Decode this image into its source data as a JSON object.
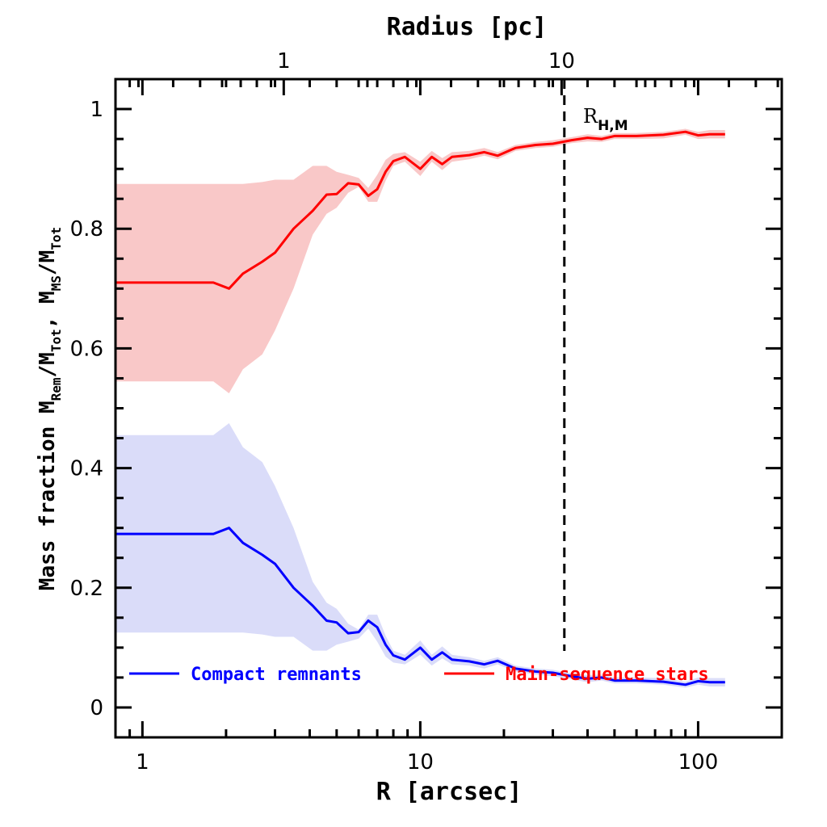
{
  "chart_data": {
    "type": "line",
    "title": "",
    "xlabel": "R [arcsec]",
    "x2label": "Radius [pc]",
    "ylabel_prefix": "Mass fraction",
    "ylabel_rem": "Rem",
    "ylabel_tot": "Tot",
    "ylabel_ms": "MS",
    "xscale": "log",
    "xlim": [
      0.8,
      200
    ],
    "ylim": [
      -0.05,
      1.05
    ],
    "xticks": [
      1,
      10,
      100
    ],
    "xticklabels": [
      "1",
      "10",
      "100"
    ],
    "yticks": [
      0,
      0.2,
      0.4,
      0.6,
      0.8,
      1
    ],
    "yticklabels": [
      "0",
      "0.2",
      "0.4",
      "0.6",
      "0.8",
      "1"
    ],
    "x2ticks": [
      1,
      10
    ],
    "x2ticklabels": [
      "1",
      "10"
    ],
    "pc_per_arcsec": 0.31,
    "vline": {
      "x": 33,
      "label": "R",
      "label_sub": "H,M"
    },
    "colors": {
      "ms": "#ff0000",
      "ms_band": "#f9c8c8",
      "rem": "#0000ff",
      "rem_band": "#dadcf9"
    },
    "series": [
      {
        "name": "Main-sequence stars",
        "x": [
          0.8,
          1.8,
          2.05,
          2.3,
          2.7,
          3.0,
          3.5,
          4.1,
          4.6,
          5.0,
          5.5,
          6.0,
          6.5,
          7.0,
          7.5,
          8.0,
          8.8,
          10.0,
          11.0,
          12.0,
          13.0,
          15.0,
          17.0,
          19.0,
          22.0,
          26.0,
          30.0,
          35.0,
          40.0,
          45.0,
          50.0,
          60.0,
          75.0,
          90.0,
          100.0,
          110.0,
          125.0
        ],
        "values": [
          0.71,
          0.71,
          0.7,
          0.725,
          0.745,
          0.76,
          0.8,
          0.83,
          0.857,
          0.858,
          0.876,
          0.874,
          0.855,
          0.866,
          0.895,
          0.913,
          0.92,
          0.9,
          0.92,
          0.908,
          0.92,
          0.923,
          0.928,
          0.922,
          0.935,
          0.94,
          0.942,
          0.948,
          0.952,
          0.95,
          0.955,
          0.955,
          0.957,
          0.962,
          0.956,
          0.958,
          0.958
        ],
        "band_upper": [
          0.875,
          0.875,
          0.875,
          0.875,
          0.878,
          0.882,
          0.882,
          0.905,
          0.905,
          0.895,
          0.89,
          0.885,
          0.868,
          0.89,
          0.915,
          0.925,
          0.928,
          0.912,
          0.93,
          0.918,
          0.928,
          0.93,
          0.935,
          0.928,
          0.94,
          0.945,
          0.948,
          0.953,
          0.958,
          0.955,
          0.96,
          0.96,
          0.962,
          0.967,
          0.962,
          0.965,
          0.965
        ],
        "band_lower": [
          0.545,
          0.545,
          0.525,
          0.565,
          0.59,
          0.63,
          0.7,
          0.79,
          0.825,
          0.835,
          0.86,
          0.87,
          0.845,
          0.845,
          0.88,
          0.905,
          0.912,
          0.888,
          0.912,
          0.898,
          0.912,
          0.916,
          0.922,
          0.916,
          0.93,
          0.935,
          0.937,
          0.943,
          0.946,
          0.945,
          0.95,
          0.95,
          0.951,
          0.957,
          0.95,
          0.951,
          0.951
        ]
      },
      {
        "name": "Compact remnants",
        "x": [
          0.8,
          1.8,
          2.05,
          2.3,
          2.7,
          3.0,
          3.5,
          4.1,
          4.6,
          5.0,
          5.5,
          6.0,
          6.5,
          7.0,
          7.5,
          8.0,
          8.8,
          10.0,
          11.0,
          12.0,
          13.0,
          15.0,
          17.0,
          19.0,
          22.0,
          26.0,
          30.0,
          35.0,
          40.0,
          45.0,
          50.0,
          60.0,
          75.0,
          90.0,
          100.0,
          110.0,
          125.0
        ],
        "values": [
          0.29,
          0.29,
          0.3,
          0.275,
          0.255,
          0.24,
          0.2,
          0.17,
          0.145,
          0.142,
          0.124,
          0.126,
          0.145,
          0.134,
          0.105,
          0.087,
          0.08,
          0.1,
          0.08,
          0.092,
          0.08,
          0.077,
          0.072,
          0.078,
          0.065,
          0.06,
          0.058,
          0.052,
          0.048,
          0.05,
          0.045,
          0.045,
          0.043,
          0.038,
          0.044,
          0.042,
          0.042
        ],
        "band_upper": [
          0.455,
          0.455,
          0.475,
          0.435,
          0.41,
          0.37,
          0.3,
          0.21,
          0.175,
          0.165,
          0.14,
          0.13,
          0.155,
          0.155,
          0.12,
          0.095,
          0.088,
          0.112,
          0.088,
          0.102,
          0.088,
          0.084,
          0.078,
          0.084,
          0.07,
          0.065,
          0.063,
          0.057,
          0.054,
          0.055,
          0.05,
          0.05,
          0.049,
          0.043,
          0.05,
          0.049,
          0.049
        ],
        "band_lower": [
          0.125,
          0.125,
          0.125,
          0.125,
          0.122,
          0.118,
          0.118,
          0.095,
          0.095,
          0.105,
          0.11,
          0.115,
          0.132,
          0.11,
          0.085,
          0.075,
          0.072,
          0.088,
          0.07,
          0.082,
          0.072,
          0.07,
          0.065,
          0.072,
          0.06,
          0.055,
          0.052,
          0.047,
          0.042,
          0.045,
          0.04,
          0.04,
          0.038,
          0.033,
          0.038,
          0.035,
          0.035
        ]
      }
    ],
    "legend": [
      {
        "label": "Compact remnants",
        "color": "#0000ff"
      },
      {
        "label": "Main-sequence stars",
        "color": "#ff0000"
      }
    ]
  }
}
